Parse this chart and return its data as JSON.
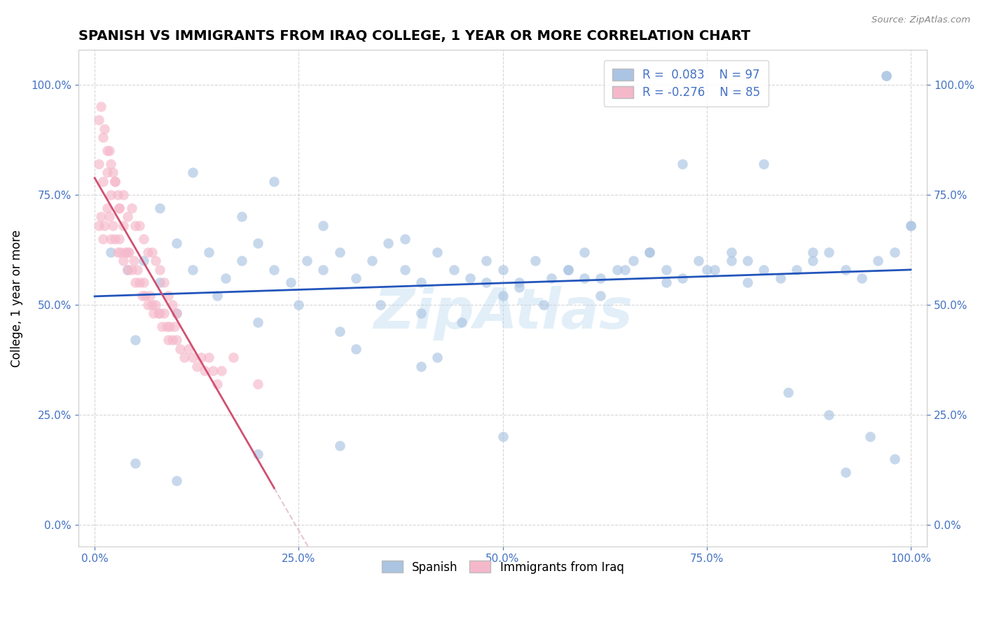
{
  "title": "SPANISH VS IMMIGRANTS FROM IRAQ COLLEGE, 1 YEAR OR MORE CORRELATION CHART",
  "source_text": "Source: ZipAtlas.com",
  "ylabel": "College, 1 year or more",
  "watermark": "ZipAtlas",
  "series1_label": "Spanish",
  "series2_label": "Immigrants from Iraq",
  "series1_color": "#aac4e2",
  "series2_color": "#f5b8ca",
  "series1_line_color": "#2255bb",
  "series2_line_color": "#d05070",
  "series2_dash_color": "#e0b8c8",
  "R1": 0.083,
  "N1": 97,
  "R2": -0.276,
  "N2": 85,
  "legend_r1_text": "R =  0.083",
  "legend_n1_text": "N = 97",
  "legend_r2_text": "R = -0.276",
  "legend_n2_text": "N = 85",
  "xlim": [
    -0.02,
    1.02
  ],
  "ylim": [
    -0.05,
    1.08
  ],
  "x_ticks": [
    0.0,
    0.25,
    0.5,
    0.75,
    1.0
  ],
  "y_ticks": [
    0.0,
    0.25,
    0.5,
    0.75,
    1.0
  ],
  "title_fontsize": 14,
  "axis_label_fontsize": 12,
  "tick_fontsize": 11,
  "tick_color": "#4472c4",
  "spanish_x": [
    0.02,
    0.04,
    0.06,
    0.08,
    0.1,
    0.12,
    0.14,
    0.16,
    0.18,
    0.2,
    0.22,
    0.24,
    0.26,
    0.28,
    0.3,
    0.32,
    0.34,
    0.36,
    0.38,
    0.4,
    0.42,
    0.44,
    0.46,
    0.48,
    0.5,
    0.52,
    0.54,
    0.56,
    0.58,
    0.6,
    0.62,
    0.64,
    0.66,
    0.68,
    0.7,
    0.72,
    0.74,
    0.76,
    0.78,
    0.8,
    0.82,
    0.84,
    0.86,
    0.88,
    0.9,
    0.92,
    0.94,
    0.96,
    0.98,
    1.0,
    0.05,
    0.1,
    0.15,
    0.2,
    0.25,
    0.3,
    0.35,
    0.4,
    0.45,
    0.5,
    0.55,
    0.6,
    0.65,
    0.7,
    0.75,
    0.8,
    0.85,
    0.9,
    0.95,
    1.0,
    0.08,
    0.18,
    0.28,
    0.38,
    0.48,
    0.58,
    0.68,
    0.78,
    0.88,
    0.98,
    0.12,
    0.22,
    0.32,
    0.42,
    0.52,
    0.62,
    0.72,
    0.82,
    0.92,
    0.05,
    0.1,
    0.2,
    0.3,
    0.4,
    0.5,
    0.97,
    0.97
  ],
  "spanish_y": [
    0.62,
    0.58,
    0.6,
    0.55,
    0.64,
    0.58,
    0.62,
    0.56,
    0.6,
    0.64,
    0.58,
    0.55,
    0.6,
    0.58,
    0.62,
    0.56,
    0.6,
    0.64,
    0.58,
    0.55,
    0.62,
    0.58,
    0.56,
    0.6,
    0.58,
    0.54,
    0.6,
    0.56,
    0.58,
    0.62,
    0.56,
    0.58,
    0.6,
    0.62,
    0.58,
    0.56,
    0.6,
    0.58,
    0.62,
    0.6,
    0.58,
    0.56,
    0.58,
    0.6,
    0.62,
    0.58,
    0.56,
    0.6,
    0.62,
    0.68,
    0.42,
    0.48,
    0.52,
    0.46,
    0.5,
    0.44,
    0.5,
    0.48,
    0.46,
    0.52,
    0.5,
    0.56,
    0.58,
    0.55,
    0.58,
    0.55,
    0.3,
    0.25,
    0.2,
    0.68,
    0.72,
    0.7,
    0.68,
    0.65,
    0.55,
    0.58,
    0.62,
    0.6,
    0.62,
    0.15,
    0.8,
    0.78,
    0.4,
    0.38,
    0.55,
    0.52,
    0.82,
    0.82,
    0.12,
    0.14,
    0.1,
    0.16,
    0.18,
    0.36,
    0.2,
    1.02,
    1.02
  ],
  "iraq_x": [
    0.005,
    0.008,
    0.01,
    0.012,
    0.015,
    0.018,
    0.02,
    0.022,
    0.025,
    0.028,
    0.03,
    0.032,
    0.035,
    0.038,
    0.04,
    0.042,
    0.045,
    0.048,
    0.05,
    0.052,
    0.055,
    0.058,
    0.06,
    0.062,
    0.065,
    0.068,
    0.07,
    0.072,
    0.075,
    0.078,
    0.08,
    0.082,
    0.085,
    0.088,
    0.09,
    0.092,
    0.095,
    0.098,
    0.1,
    0.105,
    0.11,
    0.115,
    0.12,
    0.125,
    0.13,
    0.135,
    0.14,
    0.145,
    0.15,
    0.155,
    0.005,
    0.01,
    0.015,
    0.02,
    0.025,
    0.03,
    0.035,
    0.04,
    0.045,
    0.05,
    0.055,
    0.06,
    0.065,
    0.07,
    0.075,
    0.08,
    0.085,
    0.09,
    0.095,
    0.1,
    0.005,
    0.01,
    0.015,
    0.02,
    0.025,
    0.03,
    0.035,
    0.04,
    0.17,
    0.2,
    0.008,
    0.012,
    0.018,
    0.022,
    0.028
  ],
  "iraq_y": [
    0.68,
    0.7,
    0.65,
    0.68,
    0.72,
    0.7,
    0.65,
    0.68,
    0.65,
    0.62,
    0.65,
    0.62,
    0.6,
    0.62,
    0.58,
    0.62,
    0.58,
    0.6,
    0.55,
    0.58,
    0.55,
    0.52,
    0.55,
    0.52,
    0.5,
    0.52,
    0.5,
    0.48,
    0.5,
    0.48,
    0.48,
    0.45,
    0.48,
    0.45,
    0.42,
    0.45,
    0.42,
    0.45,
    0.42,
    0.4,
    0.38,
    0.4,
    0.38,
    0.36,
    0.38,
    0.35,
    0.38,
    0.35,
    0.32,
    0.35,
    0.82,
    0.78,
    0.8,
    0.75,
    0.78,
    0.72,
    0.75,
    0.7,
    0.72,
    0.68,
    0.68,
    0.65,
    0.62,
    0.62,
    0.6,
    0.58,
    0.55,
    0.52,
    0.5,
    0.48,
    0.92,
    0.88,
    0.85,
    0.82,
    0.78,
    0.72,
    0.68,
    0.62,
    0.38,
    0.32,
    0.95,
    0.9,
    0.85,
    0.8,
    0.75
  ]
}
